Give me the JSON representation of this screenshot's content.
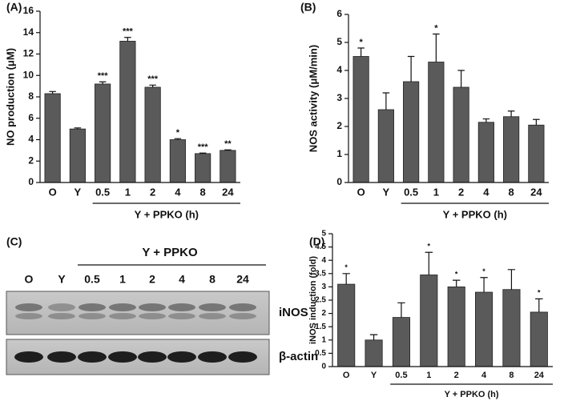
{
  "chart_data": [
    {
      "type": "bar",
      "title": "(A)",
      "y_label": "NO production (μM)",
      "categories": [
        "O",
        "Y",
        "0.5",
        "1",
        "2",
        "4",
        "8",
        "24"
      ],
      "values": [
        8.3,
        5.0,
        9.2,
        13.2,
        8.9,
        4.0,
        2.7,
        3.0
      ],
      "errors": [
        0.2,
        0.1,
        0.2,
        0.35,
        0.2,
        0.1,
        0.05,
        0.05
      ],
      "bar_labels": [
        null,
        null,
        "***",
        "***",
        "***",
        "*",
        "***",
        "**"
      ],
      "group_label": "Y + PPKO (h)",
      "color": "#5a5a5a",
      "ylim": [
        0,
        16
      ],
      "yticks": [
        0,
        2,
        4,
        6,
        8,
        10,
        12,
        14,
        16
      ],
      "grid": false
    },
    {
      "type": "bar",
      "title": "(B)",
      "y_label": "NOS activity (μM/min)",
      "categories": [
        "O",
        "Y",
        "0.5",
        "1",
        "2",
        "4",
        "8",
        "24"
      ],
      "values": [
        4.5,
        2.6,
        3.6,
        4.3,
        3.4,
        2.15,
        2.35,
        2.05
      ],
      "errors": [
        0.3,
        0.6,
        0.9,
        1.0,
        0.6,
        0.12,
        0.2,
        0.2
      ],
      "bar_labels": [
        "*",
        null,
        null,
        "*",
        null,
        null,
        null,
        null
      ],
      "group_label": "Y + PPKO (h)",
      "color": "#5a5a5a",
      "ylim": [
        0,
        6
      ],
      "yticks": [
        0,
        1,
        2,
        3,
        4,
        5,
        6
      ],
      "grid": false
    },
    {
      "type": "bar",
      "title": "(D)",
      "y_label": "iNOS induction (fold)",
      "categories": [
        "O",
        "Y",
        "0.5",
        "1",
        "2",
        "4",
        "8",
        "24"
      ],
      "values": [
        3.1,
        1.0,
        1.85,
        3.45,
        3.0,
        2.8,
        2.9,
        2.05
      ],
      "errors": [
        0.4,
        0.2,
        0.55,
        0.85,
        0.25,
        0.55,
        0.75,
        0.5
      ],
      "bar_labels": [
        "*",
        null,
        null,
        "*",
        "*",
        "*",
        null,
        "*"
      ],
      "group_label": "Y + PPKO (h)",
      "color": "#5a5a5a",
      "ylim": [
        0,
        5
      ],
      "yticks": [
        0,
        0.5,
        1,
        1.5,
        2,
        2.5,
        3,
        3.5,
        4,
        4.5,
        5
      ],
      "grid": false
    }
  ],
  "blot": {
    "title": "(C)",
    "group_label": "Y + PPKO",
    "lanes": [
      "O",
      "Y",
      "0.5",
      "1",
      "2",
      "4",
      "8",
      "24"
    ],
    "bands": [
      "iNOS",
      "β-actin"
    ]
  }
}
